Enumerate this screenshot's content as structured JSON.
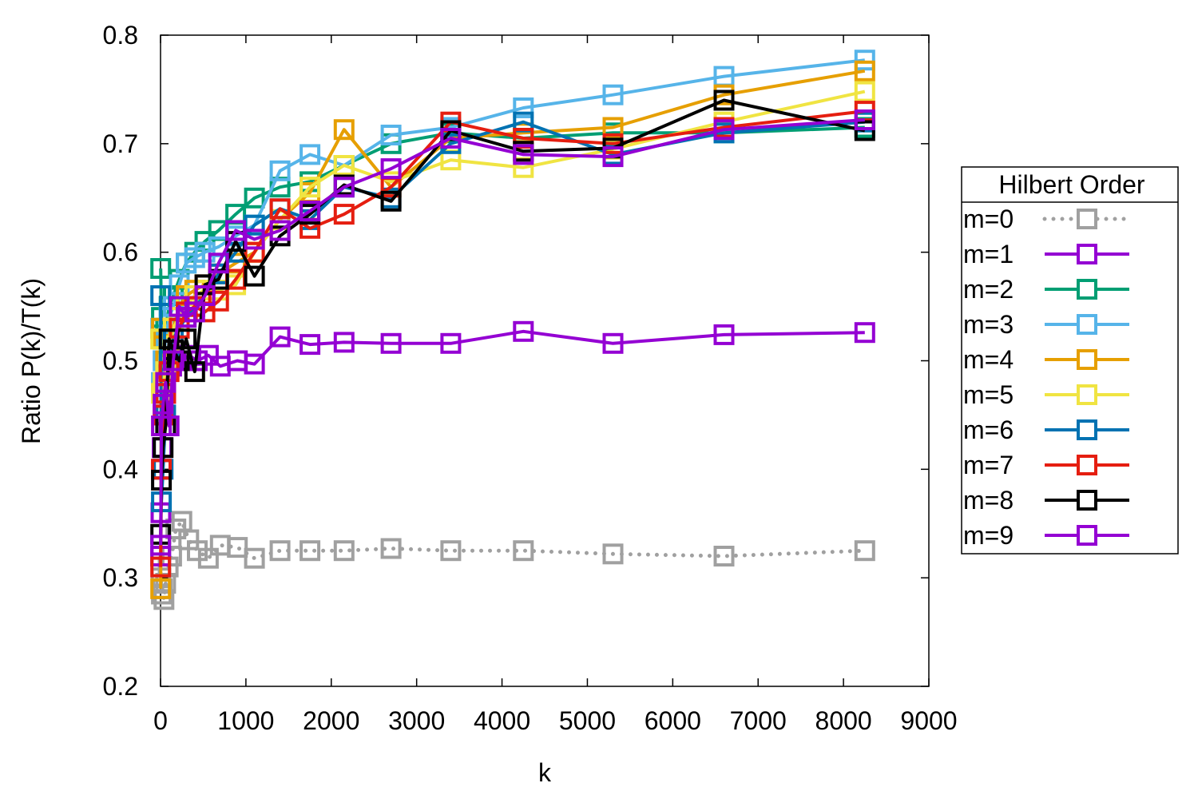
{
  "chart_data": {
    "type": "line",
    "xlabel": "k",
    "ylabel": "Ratio P(k)/T(k)",
    "xlim": [
      0,
      9000
    ],
    "ylim": [
      0.2,
      0.8
    ],
    "xticks": [
      0,
      1000,
      2000,
      3000,
      4000,
      5000,
      6000,
      7000,
      8000,
      9000
    ],
    "yticks": [
      0.2,
      0.3,
      0.4,
      0.5,
      0.6,
      0.7,
      0.8
    ],
    "xtick_labels": [
      "0",
      "1000",
      "2000",
      "3000",
      "4000",
      "5000",
      "6000",
      "7000",
      "8000",
      "9000"
    ],
    "ytick_labels": [
      "0.2",
      "0.3",
      "0.4",
      "0.5",
      "0.6",
      "0.7",
      "0.8"
    ],
    "grid": false,
    "legend_title": "Hilbert Order",
    "legend_position": "right",
    "marker": "open-square",
    "series": [
      {
        "name": "m=0",
        "color": "#a0a0a0",
        "dash": "dotted",
        "x": [
          2,
          5,
          10,
          20,
          40,
          60,
          90,
          130,
          180,
          250,
          330,
          430,
          560,
          700,
          900,
          1100,
          1400,
          1750,
          2150,
          2700,
          3400,
          4250,
          5300,
          6600,
          8250
        ],
        "y": [
          0.32,
          0.3,
          0.285,
          0.29,
          0.28,
          0.295,
          0.31,
          0.32,
          0.345,
          0.352,
          0.335,
          0.325,
          0.318,
          0.33,
          0.328,
          0.318,
          0.325,
          0.325,
          0.325,
          0.327,
          0.325,
          0.325,
          0.322,
          0.32,
          0.325
        ]
      },
      {
        "name": "m=1",
        "color": "#9400d3",
        "dash": "solid",
        "x": [
          2,
          5,
          10,
          20,
          40,
          60,
          90,
          130,
          180,
          250,
          330,
          430,
          560,
          700,
          900,
          1100,
          1400,
          1750,
          2150,
          2700,
          3400,
          4250,
          5300,
          6600,
          8250
        ],
        "y": [
          0.32,
          0.36,
          0.4,
          0.42,
          0.45,
          0.47,
          0.49,
          0.495,
          0.5,
          0.5,
          0.505,
          0.5,
          0.505,
          0.495,
          0.5,
          0.497,
          0.522,
          0.515,
          0.517,
          0.516,
          0.516,
          0.527,
          0.516,
          0.524,
          0.526
        ]
      },
      {
        "name": "m=2",
        "color": "#009e73",
        "dash": "solid",
        "x": [
          2,
          10,
          30,
          60,
          100,
          150,
          220,
          300,
          400,
          520,
          680,
          880,
          1100,
          1400,
          1750,
          2150,
          2700,
          3400,
          4250,
          5300,
          6600,
          8250
        ],
        "y": [
          0.585,
          0.54,
          0.52,
          0.53,
          0.55,
          0.56,
          0.575,
          0.59,
          0.6,
          0.61,
          0.62,
          0.635,
          0.65,
          0.66,
          0.665,
          0.68,
          0.7,
          0.71,
          0.705,
          0.71,
          0.71,
          0.715
        ]
      },
      {
        "name": "m=3",
        "color": "#56b4e9",
        "dash": "solid",
        "x": [
          2,
          10,
          30,
          60,
          100,
          150,
          220,
          300,
          400,
          520,
          680,
          880,
          1100,
          1400,
          1750,
          2150,
          2700,
          3400,
          4250,
          5300,
          6600,
          8250
        ],
        "y": [
          0.53,
          0.48,
          0.5,
          0.52,
          0.54,
          0.55,
          0.57,
          0.59,
          0.595,
          0.6,
          0.605,
          0.615,
          0.625,
          0.675,
          0.69,
          0.68,
          0.708,
          0.715,
          0.733,
          0.745,
          0.762,
          0.777
        ]
      },
      {
        "name": "m=4",
        "color": "#e69f00",
        "dash": "solid",
        "x": [
          2,
          10,
          30,
          60,
          100,
          150,
          220,
          300,
          400,
          520,
          680,
          880,
          1100,
          1400,
          1750,
          2150,
          2700,
          3400,
          4250,
          5300,
          6600,
          8250
        ],
        "y": [
          0.29,
          0.53,
          0.52,
          0.5,
          0.515,
          0.53,
          0.55,
          0.56,
          0.565,
          0.57,
          0.58,
          0.59,
          0.6,
          0.63,
          0.655,
          0.713,
          0.66,
          0.705,
          0.71,
          0.715,
          0.745,
          0.767
        ]
      },
      {
        "name": "m=5",
        "color": "#f0e442",
        "dash": "solid",
        "x": [
          2,
          10,
          30,
          60,
          100,
          150,
          220,
          300,
          400,
          520,
          680,
          880,
          1100,
          1400,
          1750,
          2150,
          2700,
          3400,
          4250,
          5300,
          6600,
          8250
        ],
        "y": [
          0.52,
          0.47,
          0.48,
          0.49,
          0.51,
          0.53,
          0.54,
          0.55,
          0.56,
          0.565,
          0.565,
          0.57,
          0.6,
          0.63,
          0.66,
          0.68,
          0.665,
          0.685,
          0.678,
          0.695,
          0.72,
          0.748
        ]
      },
      {
        "name": "m=6",
        "color": "#0072b2",
        "dash": "solid",
        "x": [
          2,
          10,
          30,
          60,
          100,
          150,
          220,
          300,
          400,
          520,
          680,
          880,
          1100,
          1400,
          1750,
          2150,
          2700,
          3400,
          4250,
          5300,
          6600,
          8250
        ],
        "y": [
          0.56,
          0.37,
          0.4,
          0.45,
          0.5,
          0.52,
          0.53,
          0.54,
          0.55,
          0.56,
          0.58,
          0.6,
          0.625,
          0.64,
          0.63,
          0.66,
          0.65,
          0.7,
          0.72,
          0.69,
          0.71,
          0.72
        ]
      },
      {
        "name": "m=7",
        "color": "#e51e10",
        "dash": "solid",
        "x": [
          2,
          10,
          30,
          60,
          100,
          150,
          220,
          300,
          400,
          520,
          680,
          880,
          1100,
          1400,
          1750,
          2150,
          2700,
          3400,
          4250,
          5300,
          6600,
          8250
        ],
        "y": [
          0.31,
          0.4,
          0.45,
          0.47,
          0.49,
          0.51,
          0.53,
          0.545,
          0.55,
          0.545,
          0.555,
          0.575,
          0.6,
          0.64,
          0.622,
          0.635,
          0.66,
          0.72,
          0.705,
          0.7,
          0.715,
          0.73
        ]
      },
      {
        "name": "m=8",
        "color": "#000000",
        "dash": "solid",
        "x": [
          2,
          10,
          30,
          60,
          100,
          150,
          220,
          300,
          400,
          520,
          680,
          880,
          1100,
          1400,
          1750,
          2150,
          2700,
          3400,
          4250,
          5300,
          6600,
          8250
        ],
        "y": [
          0.34,
          0.39,
          0.42,
          0.44,
          0.52,
          0.51,
          0.5,
          0.52,
          0.49,
          0.57,
          0.575,
          0.61,
          0.578,
          0.615,
          0.635,
          0.662,
          0.647,
          0.712,
          0.693,
          0.696,
          0.74,
          0.712
        ]
      },
      {
        "name": "m=9",
        "color": "#9400d3",
        "dash": "solid",
        "x": [
          2,
          10,
          30,
          60,
          100,
          150,
          220,
          300,
          400,
          520,
          680,
          880,
          1100,
          1400,
          1750,
          2150,
          2700,
          3400,
          4250,
          5300,
          6600,
          8250
        ],
        "y": [
          0.33,
          0.44,
          0.46,
          0.48,
          0.44,
          0.5,
          0.55,
          0.54,
          0.545,
          0.56,
          0.59,
          0.62,
          0.612,
          0.62,
          0.638,
          0.66,
          0.677,
          0.705,
          0.69,
          0.688,
          0.713,
          0.722
        ]
      }
    ]
  }
}
